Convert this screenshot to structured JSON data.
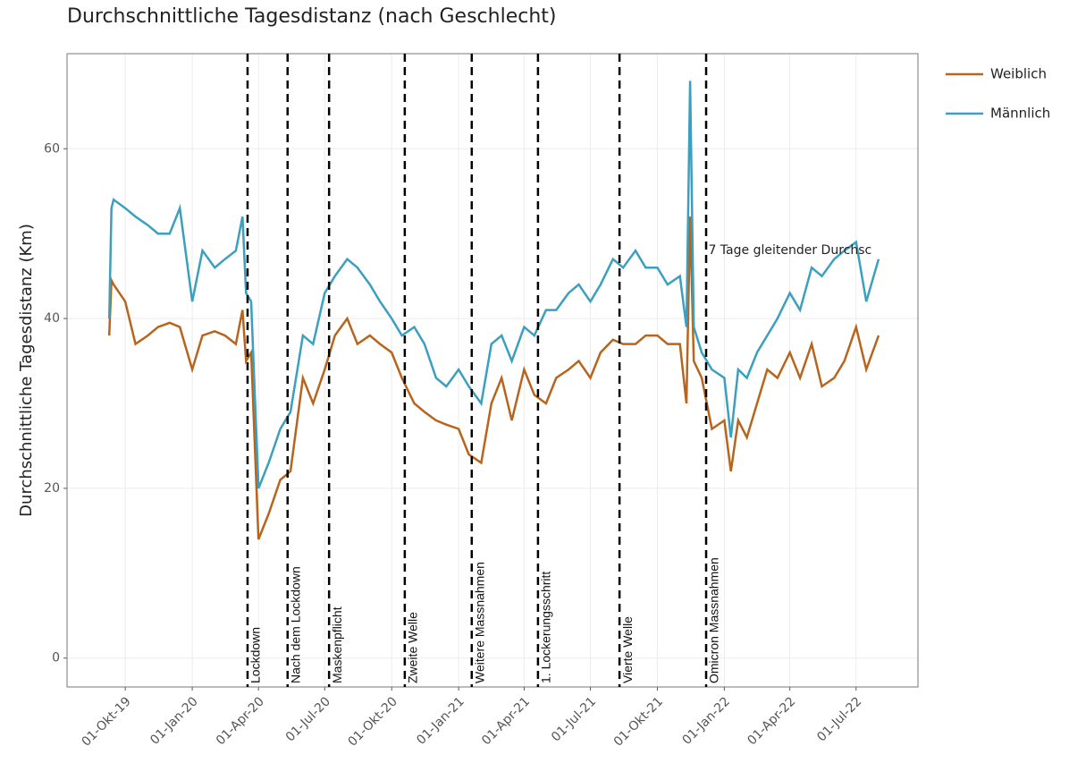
{
  "chart_data": {
    "type": "line",
    "title": "Durchschnittliche Tagesdistanz (nach Geschlecht)",
    "ylabel": "Durchschnittliche Tagesdistanz (Km)",
    "x": [
      "2019-09-09",
      "2019-09-12",
      "2019-09-15",
      "2019-10-01",
      "2019-10-15",
      "2019-11-01",
      "2019-11-15",
      "2019-12-01",
      "2019-12-15",
      "2020-01-01",
      "2020-01-15",
      "2020-02-01",
      "2020-02-15",
      "2020-03-01",
      "2020-03-10",
      "2020-03-15",
      "2020-03-22",
      "2020-04-01",
      "2020-04-15",
      "2020-05-01",
      "2020-05-15",
      "2020-06-01",
      "2020-06-15",
      "2020-07-01",
      "2020-07-15",
      "2020-08-01",
      "2020-08-15",
      "2020-09-01",
      "2020-09-15",
      "2020-10-01",
      "2020-10-15",
      "2020-11-01",
      "2020-11-15",
      "2020-12-01",
      "2020-12-15",
      "2021-01-01",
      "2021-01-15",
      "2021-02-01",
      "2021-02-15",
      "2021-03-01",
      "2021-03-15",
      "2021-04-01",
      "2021-04-15",
      "2021-05-01",
      "2021-05-15",
      "2021-06-01",
      "2021-06-15",
      "2021-07-01",
      "2021-07-15",
      "2021-08-01",
      "2021-08-15",
      "2021-09-01",
      "2021-09-15",
      "2021-10-01",
      "2021-10-15",
      "2021-11-01",
      "2021-11-10",
      "2021-11-15",
      "2021-11-20",
      "2021-12-01",
      "2021-12-15",
      "2022-01-01",
      "2022-01-10",
      "2022-01-20",
      "2022-02-01",
      "2022-02-15",
      "2022-03-01",
      "2022-03-15",
      "2022-04-01",
      "2022-04-15",
      "2022-05-01",
      "2022-05-15",
      "2022-06-01",
      "2022-06-15",
      "2022-07-01",
      "2022-07-15",
      "2022-08-01"
    ],
    "series": [
      {
        "name": "Weiblich",
        "color": "#b8641c",
        "values": [
          38,
          44.5,
          44,
          42,
          37,
          38,
          39,
          39.5,
          39,
          34,
          38,
          38.5,
          38,
          37,
          41,
          35,
          36,
          14,
          17,
          21,
          22,
          33,
          30,
          34,
          38,
          40,
          37,
          38,
          37,
          36,
          33,
          30,
          29,
          28,
          27.5,
          27,
          24,
          23,
          30,
          33,
          28,
          34,
          31,
          30,
          33,
          34,
          35,
          33,
          36,
          37.5,
          37,
          37,
          38,
          38,
          37,
          37,
          30,
          52,
          35,
          33,
          27,
          28,
          22,
          28,
          26,
          30,
          34,
          33,
          36,
          33,
          37,
          32,
          33,
          35,
          39,
          34,
          38
        ]
      },
      {
        "name": "Männlich",
        "color": "#3b9fbf",
        "values": [
          40,
          53,
          54,
          53,
          52,
          51,
          50,
          50,
          53,
          42,
          48,
          46,
          47,
          48,
          52,
          43,
          42,
          20,
          23,
          27,
          29,
          38,
          37,
          43,
          45,
          47,
          46,
          44,
          42,
          40,
          38,
          39,
          37,
          33,
          32,
          34,
          32,
          30,
          37,
          38,
          35,
          39,
          38,
          41,
          41,
          43,
          44,
          42,
          44,
          47,
          46,
          48,
          46,
          46,
          44,
          45,
          39,
          68,
          39,
          36,
          34,
          33,
          26,
          34,
          33,
          36,
          38,
          40,
          43,
          41,
          46,
          45,
          47,
          48,
          49,
          42,
          47
        ]
      }
    ],
    "xlim": [
      "2019-07-13",
      "2022-09-24"
    ],
    "xticks": [
      {
        "value": "2019-10-01",
        "label": "01-Okt-19"
      },
      {
        "value": "2020-01-01",
        "label": "01-Jan-20"
      },
      {
        "value": "2020-04-01",
        "label": "01-Apr-20"
      },
      {
        "value": "2020-07-01",
        "label": "01-Jul-20"
      },
      {
        "value": "2020-10-01",
        "label": "01-Okt-20"
      },
      {
        "value": "2021-01-01",
        "label": "01-Jan-21"
      },
      {
        "value": "2021-04-01",
        "label": "01-Apr-21"
      },
      {
        "value": "2021-07-01",
        "label": "01-Jul-21"
      },
      {
        "value": "2021-10-01",
        "label": "01-Okt-21"
      },
      {
        "value": "2022-01-01",
        "label": "01-Jan-22"
      },
      {
        "value": "2022-04-01",
        "label": "01-Apr-22"
      },
      {
        "value": "2022-07-01",
        "label": "01-Jul-22"
      }
    ],
    "ylim": [
      -3.4,
      71.2
    ],
    "yticks": [
      0,
      20,
      40,
      60
    ],
    "grid": true,
    "legend": "right",
    "events": [
      {
        "label": "Lockdown",
        "x": "2020-03-17"
      },
      {
        "label": "Nach dem Lockdown",
        "x": "2020-05-11"
      },
      {
        "label": "Maskenpflicht",
        "x": "2020-07-07"
      },
      {
        "label": "Zweite Welle",
        "x": "2020-10-19"
      },
      {
        "label": "Weitere Massnahmen",
        "x": "2021-01-19"
      },
      {
        "label": "1. Lockerungsschritt",
        "x": "2021-04-20"
      },
      {
        "label": "Vierte Welle",
        "x": "2021-08-10"
      },
      {
        "label": "Omicron Massnahmen",
        "x": "2021-12-07"
      }
    ],
    "annotation": {
      "text": "7 Tage gleitender Durchsc",
      "x": "2021-12-10",
      "y": 48
    }
  }
}
